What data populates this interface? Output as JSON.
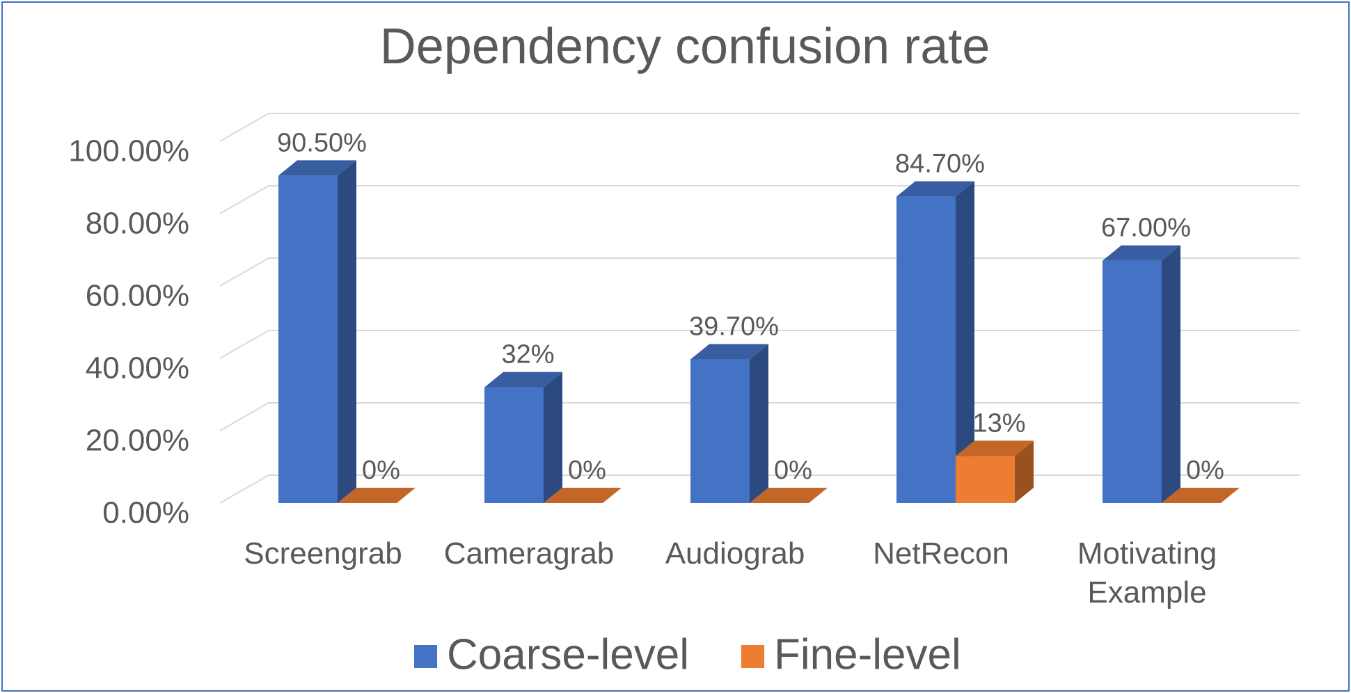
{
  "chart_data": {
    "type": "bar3d",
    "title": "Dependency confusion rate",
    "categories": [
      "Screengrab",
      "Cameragrab",
      "Audiograb",
      "NetRecon",
      "Motivating Example"
    ],
    "series": [
      {
        "name": "Coarse-level",
        "color": "#4472c4",
        "values": [
          90.5,
          32,
          39.7,
          84.7,
          67
        ],
        "value_labels": [
          "90.50%",
          "32%",
          "39.70%",
          "84.70%",
          "67.00%"
        ]
      },
      {
        "name": "Fine-level",
        "color": "#ed7d31",
        "values": [
          0,
          0,
          0,
          13,
          0
        ],
        "value_labels": [
          "0%",
          "0%",
          "0%",
          "13%",
          "0%"
        ]
      }
    ],
    "ylim": [
      0,
      100
    ],
    "yticks": [
      {
        "value": 0,
        "label": "0.00%"
      },
      {
        "value": 20,
        "label": "20.00%"
      },
      {
        "value": 40,
        "label": "40.00%"
      },
      {
        "value": 60,
        "label": "60.00%"
      },
      {
        "value": 80,
        "label": "80.00%"
      },
      {
        "value": 100,
        "label": "100.00%"
      }
    ],
    "grid": true,
    "legend": "bottom"
  }
}
